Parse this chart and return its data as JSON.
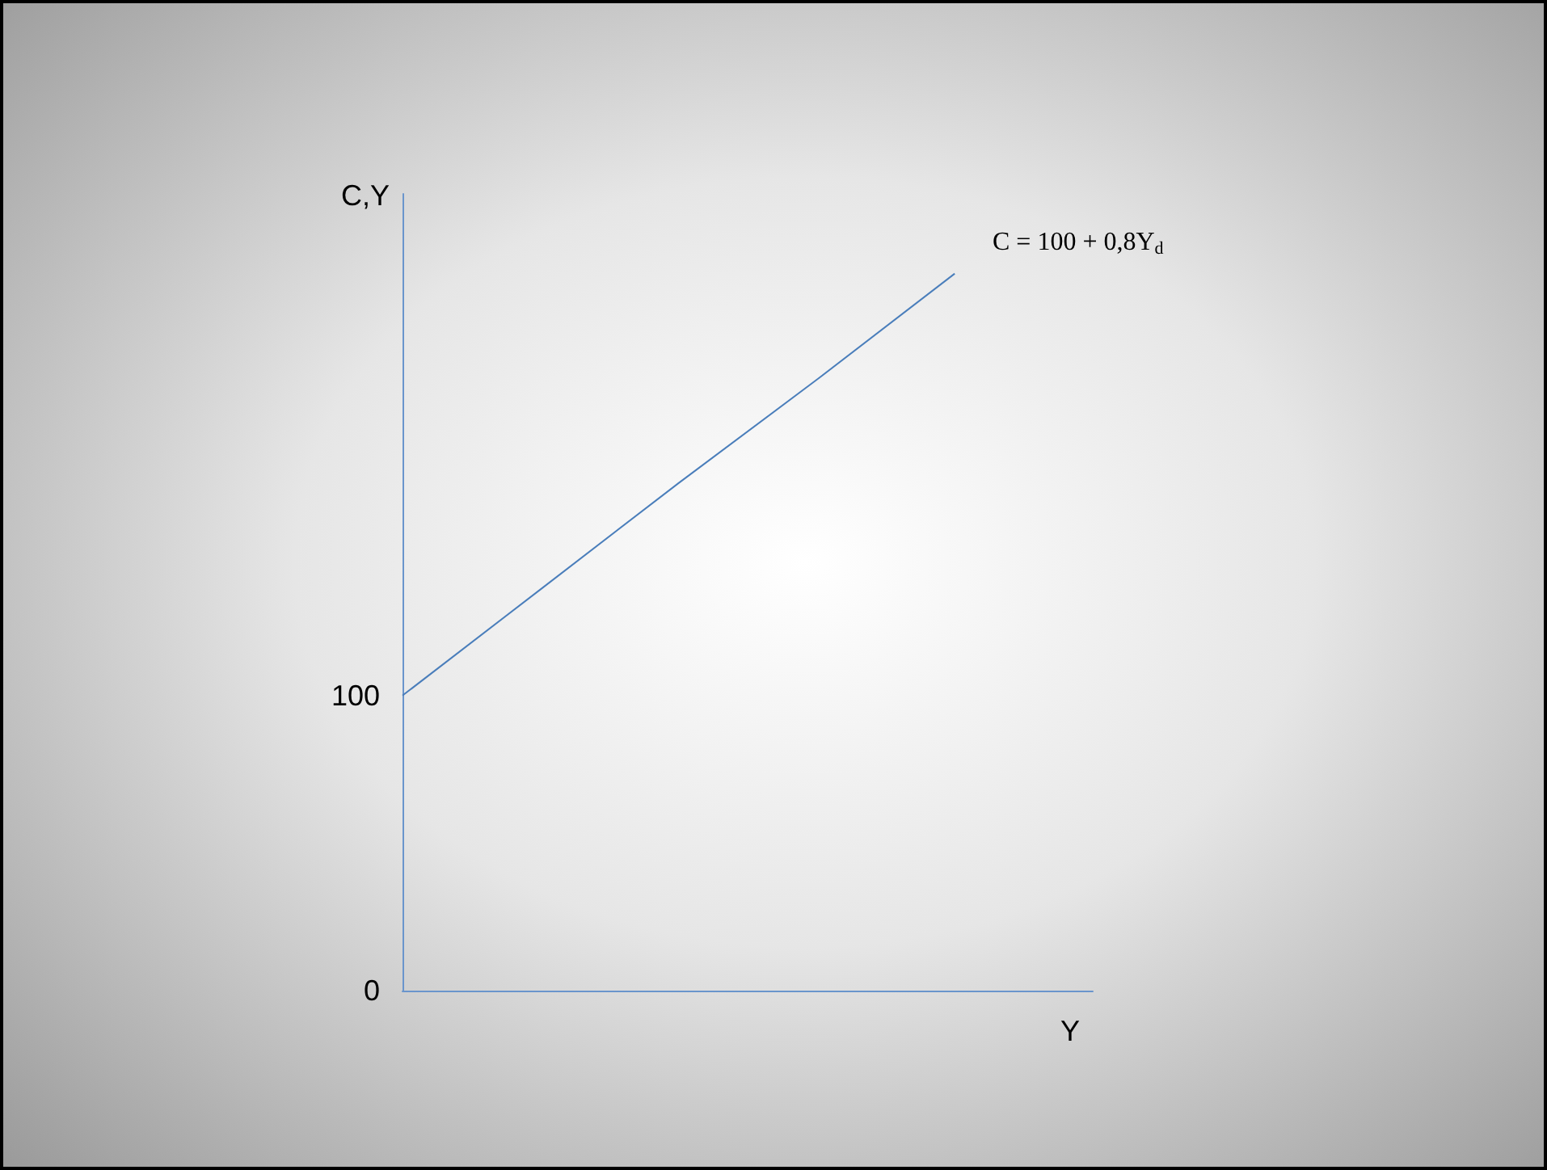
{
  "chart_data": {
    "type": "line",
    "ylabel": "C,Y",
    "xlabel": "Y",
    "categories": [
      null,
      null,
      null,
      null,
      null,
      null
    ],
    "series": [
      {
        "color": "#4a7ebb",
        "values": [
          100,
          136,
          172,
          207,
          243,
          null
        ]
      }
    ],
    "ylim": [
      0,
      270
    ],
    "yticks": [
      0,
      100
    ],
    "grid": false,
    "marker": "none",
    "line_style": "solid",
    "annotations": [
      "C = 100 + 0,8Y$_{d}$"
    ]
  }
}
